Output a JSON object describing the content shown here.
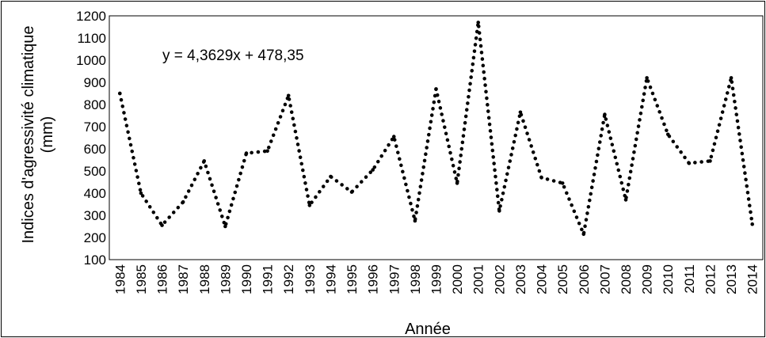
{
  "chart_data": {
    "type": "line",
    "ylabel_line1": "Indices d'agressivité climatique",
    "ylabel_line2": "(mm)",
    "xlabel": "Année",
    "annotation": "y = 4,3629x + 478,35",
    "ylim": [
      100,
      1200
    ],
    "yticks": [
      100,
      200,
      300,
      400,
      500,
      600,
      700,
      800,
      900,
      1000,
      1100,
      1200
    ],
    "categories": [
      "1984",
      "1985",
      "1986",
      "1987",
      "1988",
      "1989",
      "1990",
      "1991",
      "1992",
      "1993",
      "1994",
      "1995",
      "1996",
      "1997",
      "1998",
      "1999",
      "2000",
      "2001",
      "2002",
      "2003",
      "2004",
      "2005",
      "2006",
      "2007",
      "2008",
      "2009",
      "2010",
      "2011",
      "2012",
      "2013",
      "2014"
    ],
    "series": [
      {
        "values": [
          850,
          400,
          255,
          360,
          545,
          250,
          580,
          590,
          840,
          345,
          475,
          405,
          505,
          655,
          275,
          870,
          445,
          1170,
          320,
          765,
          470,
          445,
          215,
          755,
          370,
          920,
          665,
          535,
          545,
          920,
          260
        ],
        "line_style": "dotted",
        "color": "#000000"
      }
    ],
    "grid": false,
    "legend": "none"
  }
}
